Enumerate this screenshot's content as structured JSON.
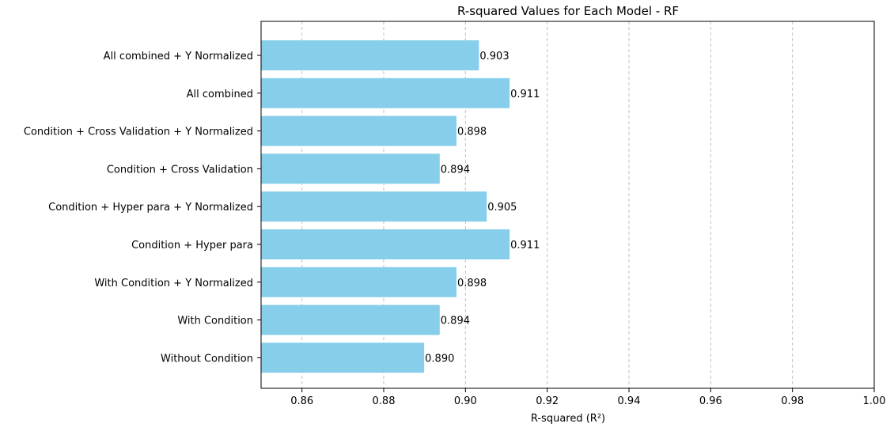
{
  "chart_data": {
    "type": "bar",
    "orientation": "horizontal",
    "title": "R-squared Values for Each Model - RF",
    "xlabel": "R-squared (R²)",
    "ylabel": "",
    "xlim": [
      0.85,
      1.0
    ],
    "xticks": [
      0.86,
      0.88,
      0.9,
      0.92,
      0.94,
      0.96,
      0.98,
      1.0
    ],
    "xtick_labels": [
      "0.86",
      "0.88",
      "0.90",
      "0.92",
      "0.94",
      "0.96",
      "0.98",
      "1.00"
    ],
    "grid": "x-dashed",
    "bar_color": "#87CEEB",
    "categories": [
      "All combined + Y Normalized",
      "All combined",
      "Condition + Cross Validation + Y Normalized",
      "Condition + Cross Validation",
      "Condition + Hyper para + Y Normalized",
      "Condition + Hyper para",
      "With Condition + Y Normalized",
      "With Condition",
      "Without Condition"
    ],
    "values": [
      0.9033,
      0.9108,
      0.8978,
      0.8937,
      0.9052,
      0.9108,
      0.8978,
      0.8937,
      0.8899
    ],
    "value_labels": [
      "0.903",
      "0.911",
      "0.898",
      "0.894",
      "0.905",
      "0.911",
      "0.898",
      "0.894",
      "0.890"
    ]
  }
}
